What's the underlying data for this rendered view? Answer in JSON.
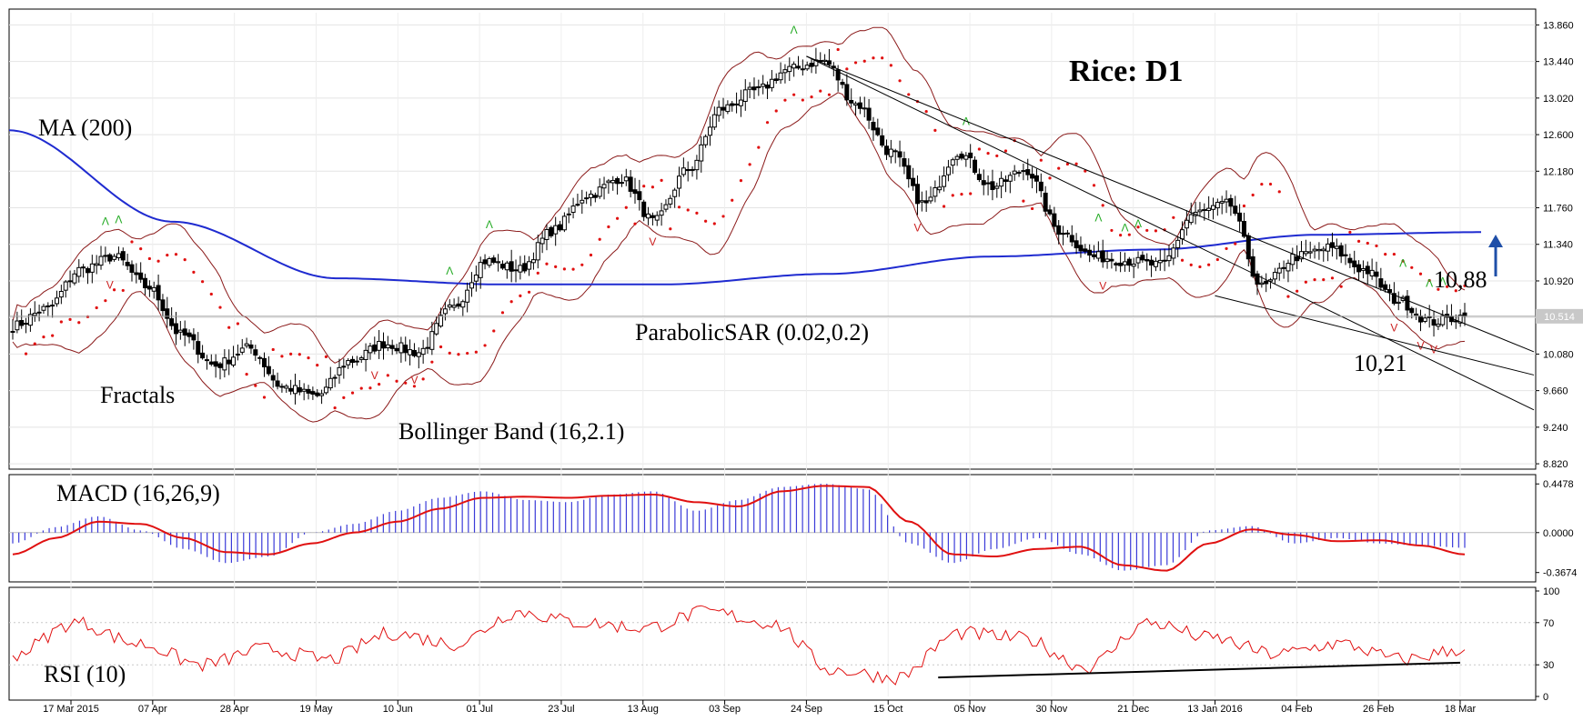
{
  "title": "Rice: D1",
  "current_price": "10.514",
  "annotations": {
    "ma": "MA (200)",
    "fractals": "Fractals",
    "bollinger": "Bollinger Band (16,2.1)",
    "sar": "ParabolicSAR (0.02,0.2)",
    "macd": "MACD (16,26,9)",
    "rsi": "RSI (10)",
    "level_high": "10,88",
    "level_low": "10,21"
  },
  "x_ticks": [
    "17 Mar 2015",
    "07 Apr",
    "28 Apr",
    "19 May",
    "10 Jun",
    "01 Jul",
    "23 Jul",
    "13 Aug",
    "03 Sep",
    "24 Sep",
    "15 Oct",
    "05 Nov",
    "30 Nov",
    "21 Dec",
    "13 Jan 2016",
    "04 Feb",
    "26 Feb",
    "18 Mar"
  ],
  "price_ticks": [
    "13.860",
    "13.440",
    "13.020",
    "12.600",
    "12.180",
    "11.760",
    "11.340",
    "10.920",
    "10.500",
    "10.080",
    "9.660",
    "9.240",
    "8.820"
  ],
  "macd_ticks": [
    "0.4478",
    "0.0000",
    "-0.3674"
  ],
  "rsi_ticks": [
    "100",
    "70",
    "30",
    "0"
  ],
  "colors": {
    "ma": "#1f2bd0",
    "bollinger": "#8b1a1a",
    "sar": "#e01010",
    "macd_hist": "#3a3ad8",
    "macd_signal": "#e01010",
    "rsi": "#e01010",
    "fractal_up": "#22aa22",
    "fractal_down": "#cc2020",
    "arrow": "#1f4fa8"
  },
  "chart_data": {
    "type": "candlestick",
    "title": "Rice: D1",
    "price_range": [
      8.8,
      14.0
    ],
    "macd_range": [
      -0.42,
      0.5
    ],
    "rsi_range": [
      0,
      100
    ],
    "anchors": {
      "close": [
        10.4,
        10.6,
        11.05,
        11.2,
        10.85,
        10.3,
        9.95,
        10.15,
        9.7,
        9.6,
        10.0,
        10.2,
        10.1,
        10.6,
        11.15,
        11.05,
        11.5,
        11.9,
        12.1,
        11.6,
        12.2,
        12.9,
        13.1,
        13.35,
        13.45,
        12.95,
        12.4,
        11.8,
        12.4,
        12.0,
        12.2,
        11.5,
        11.2,
        11.15,
        11.1,
        11.7,
        11.8,
        10.85,
        11.2,
        11.3,
        11.05,
        10.7,
        10.45,
        10.514
      ],
      "macd": [
        -0.1,
        0.05,
        0.15,
        0.02,
        -0.15,
        -0.28,
        -0.22,
        0.0,
        0.08,
        0.2,
        0.32,
        0.38,
        0.3,
        0.28,
        0.35,
        0.38,
        0.2,
        0.3,
        0.42,
        0.45,
        0.4,
        -0.1,
        -0.28,
        -0.15,
        -0.05,
        -0.2,
        -0.35,
        -0.3,
        0.02,
        0.06,
        -0.1,
        -0.05,
        -0.1,
        -0.12,
        -0.14
      ],
      "signal": [
        -0.2,
        -0.05,
        0.1,
        0.08,
        -0.05,
        -0.18,
        -0.2,
        -0.1,
        0.0,
        0.1,
        0.22,
        0.32,
        0.33,
        0.32,
        0.34,
        0.35,
        0.28,
        0.24,
        0.38,
        0.43,
        0.42,
        0.1,
        -0.2,
        -0.22,
        -0.15,
        -0.13,
        -0.3,
        -0.35,
        -0.1,
        0.03,
        -0.02,
        -0.08,
        -0.07,
        -0.12,
        -0.2
      ],
      "ma200": [
        12.65,
        11.6,
        10.95,
        10.88,
        10.88,
        11.0,
        11.2,
        11.28,
        11.45,
        11.48
      ],
      "rsi": [
        40,
        70,
        50,
        30,
        45,
        35,
        60,
        50,
        80,
        70,
        65,
        80,
        70,
        25,
        18,
        60,
        55,
        28,
        70,
        55,
        40,
        50,
        35,
        45
      ]
    },
    "bollinger_mid_offset": 0.7,
    "trendlines": [
      {
        "from": [
          "24 Sep",
          13.5
        ],
        "to": [
          "18 Mar",
          10.45
        ]
      },
      {
        "from": [
          "13 Jan 2016",
          10.75
        ],
        "to": [
          "18 Mar",
          10.05
        ]
      },
      {
        "from": [
          "24 Sep",
          13.5
        ],
        "to": [
          "18 Mar",
          9.85
        ]
      }
    ],
    "rsi_support": {
      "from": [
        "15 Oct",
        18
      ],
      "to": [
        "18 Mar",
        32
      ]
    }
  }
}
